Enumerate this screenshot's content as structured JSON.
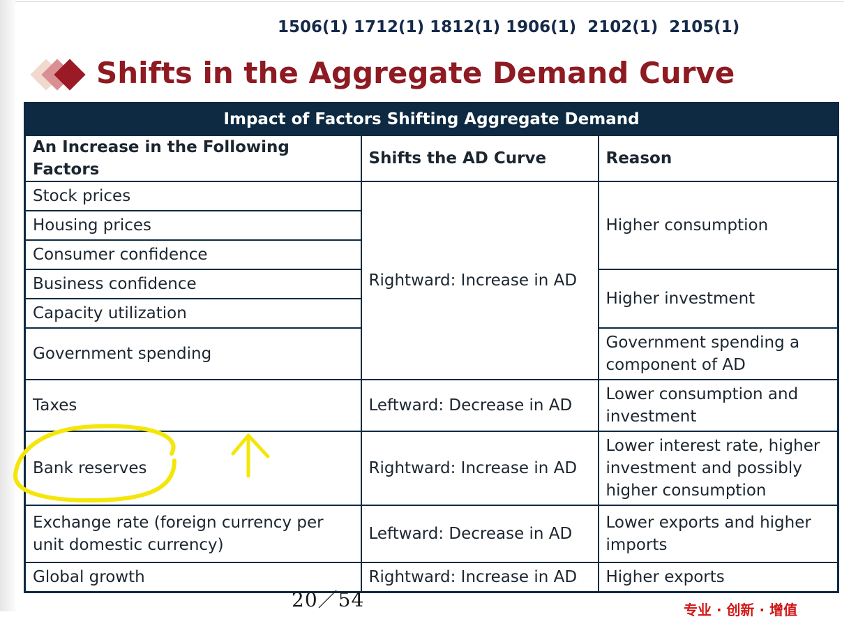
{
  "exam_codes": "1506(1) 1712(1) 1812(1) 1906(1)  2102(1)  2105(1)",
  "slide_title": "Shifts in the Aggregate Demand Curve",
  "table": {
    "caption": "Impact of Factors Shifting Aggregate Demand",
    "headers": [
      "An Increase in the Following Factors",
      "Shifts the AD Curve",
      "Reason"
    ],
    "factors": {
      "stock_prices": "Stock prices",
      "housing_prices": "Housing prices",
      "consumer_confidence": "Consumer confidence",
      "business_confidence": "Business confidence",
      "capacity_utilization": "Capacity utilization",
      "government_spending": "Government spending",
      "taxes": "Taxes",
      "bank_reserves": "Bank reserves",
      "exchange_rate": "Exchange rate (foreign currency per unit domestic currency)",
      "global_growth": "Global growth"
    },
    "shifts": {
      "group_rightward": "Rightward: Increase in AD",
      "taxes": "Leftward: Decrease in AD",
      "bank_reserves": "Rightward: Increase in AD",
      "exchange_rate": "Leftward: Decrease in AD",
      "global_growth": "Rightward: Increase in AD"
    },
    "reasons": {
      "consumption": "Higher consumption",
      "investment": "Higher investment",
      "government": "Government spending a component of AD",
      "taxes": "Lower consumption and investment",
      "bank_reserves": "Lower interest rate, higher investment and possibly higher consumption",
      "exchange_rate": "Lower exports and higher imports",
      "global_growth": "Higher exports"
    }
  },
  "page_number": "20／54",
  "footer_tag": "专业 · 创新 · 增值",
  "colors": {
    "title_red": "#8e1a22",
    "table_navy": "#0e2a42",
    "highlighter_yellow": "#f5e60a"
  }
}
